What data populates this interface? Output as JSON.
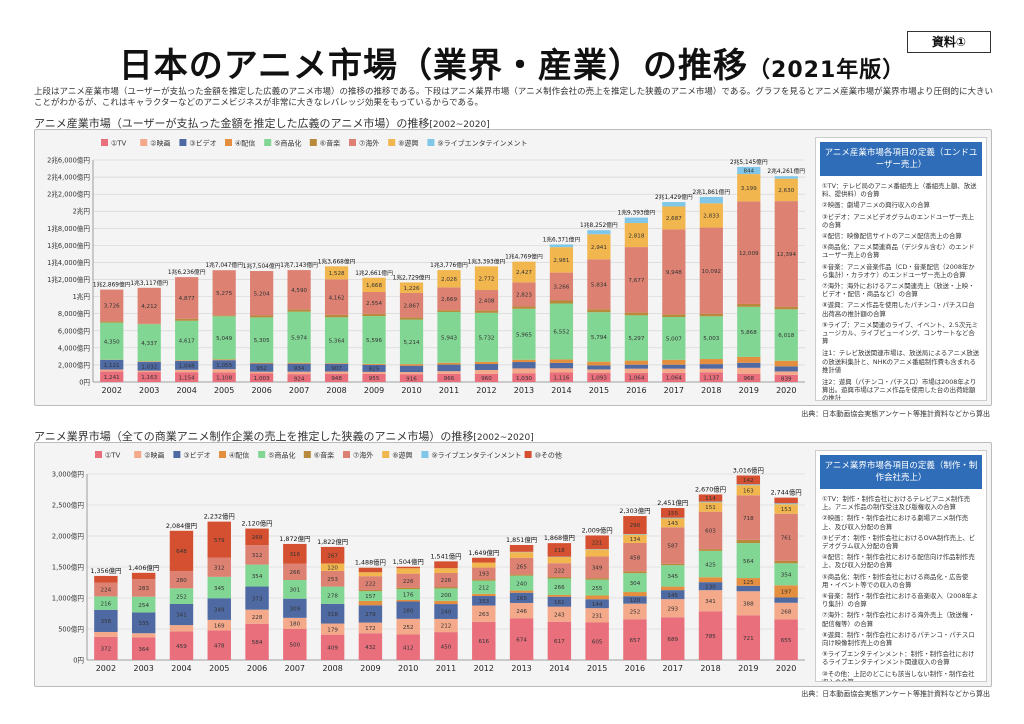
{
  "badge": "資料①",
  "title_main": "日本のアニメ市場（業界・産業）の推移",
  "title_sub": "（2021年版）",
  "intro": "上段はアニメ産業市場（ユーザーが支払った金額を推定した広義のアニメ市場）の推移の推移である。下段はアニメ業界市場（アニメ制作会社の売上を推定した狭義のアニメ市場）である。グラフを見るとアニメ産業市場が業界市場より圧倒的に大きいことがわかるが、これはキャラクターなどのアニメビジネスが非常に大きなレバレッジ効果をもっているからである。",
  "section1": {
    "title": "アニメ産業市場（ユーザーが支払った金額を推定した広義のアニメ市場）の推移",
    "range": "[2002~2020]",
    "source": "出典：日本動画協会実態アンケート等推計資料などから算出"
  },
  "section2": {
    "title": "アニメ業界市場（全ての商業アニメ制作企業の売上を推定した狭義のアニメ市場）の推移",
    "range": "[2002~2020]",
    "source": "出典：日本動画協会実態アンケート等推計資料などから算出"
  },
  "colors": {
    "tv": "#e96f7c",
    "movie": "#f3a98a",
    "video": "#4f6aa3",
    "delivery": "#e48f3f",
    "merch": "#82d694",
    "music": "#b98a3c",
    "overseas": "#dd8273",
    "pachinko": "#f2b64e",
    "live": "#7fc6e8",
    "other": "#d45030"
  },
  "chart_data": [
    {
      "type": "bar",
      "title": "アニメ産業市場の推移",
      "ylim": [
        0,
        26000
      ],
      "yticks": [
        0,
        2000,
        4000,
        6000,
        8000,
        10000,
        12000,
        14000,
        16000,
        18000,
        20000,
        22000,
        24000,
        26000
      ],
      "ytick_labels": [
        "0円",
        "2,000億円",
        "4,000億円",
        "6,000億円",
        "8,000億円",
        "1兆円",
        "1兆2,000億円",
        "1兆4,000億円",
        "1兆6,000億円",
        "1兆8,000億円",
        "2兆円",
        "2兆2,000億円",
        "2兆4,000億円",
        "2兆6,000億円"
      ],
      "categories": [
        "2002",
        "2003",
        "2004",
        "2005",
        "2006",
        "2007",
        "2008",
        "2009",
        "2010",
        "2011",
        "2012",
        "2013",
        "2014",
        "2015",
        "2016",
        "2017",
        "2018",
        "2019",
        "2020"
      ],
      "series": [
        {
          "name": "①TV",
          "key": "tv",
          "values": [
            1241,
            1163,
            1154,
            1108,
            1003,
            924,
            948,
            955,
            916,
            966,
            960,
            1030,
            1116,
            1093,
            1064,
            1064,
            1137,
            968,
            839
          ]
        },
        {
          "name": "②映画",
          "key": "movie",
          "values": [
            218,
            170,
            277,
            394,
            203,
            288,
            283,
            229,
            245,
            301,
            447,
            564,
            488,
            379,
            498,
            498,
            426,
            694,
            401
          ]
        },
        {
          "name": "③ビデオ",
          "key": "video",
          "values": [
            1121,
            1032,
            1048,
            1055,
            952,
            934,
            907,
            825,
            753,
            773,
            699,
            745,
            630,
            473,
            468,
            461,
            532,
            587,
            592
          ]
        },
        {
          "name": "④配信",
          "key": "delivery",
          "values": [
            30,
            66,
            73,
            92,
            105,
            113,
            75,
            110,
            186,
            217,
            262,
            272,
            408,
            437,
            478,
            580,
            595,
            687,
            660
          ]
        },
        {
          "name": "⑤商品化",
          "key": "merch",
          "values": [
            4350,
            4337,
            4617,
            5049,
            5305,
            5974,
            5364,
            5596,
            5214,
            5943,
            5732,
            5965,
            6552,
            5794,
            5297,
            5007,
            5003,
            5868,
            6018
          ]
        },
        {
          "name": "⑥音楽",
          "key": "music",
          "values": [
            138,
            51,
            235,
            120,
            227,
            283,
            283,
            271,
            251,
            215,
            264,
            271,
            352,
            352,
            319,
            316,
            306,
            337,
            279
          ]
        },
        {
          "name": "⑦海外",
          "key": "overseas",
          "values": [
            3726,
            4212,
            4877,
            5275,
            5204,
            4590,
            4162,
            2554,
            2867,
            2669,
            2408,
            2823,
            3266,
            5834,
            7677,
            9948,
            10092,
            12009,
            12394
          ]
        },
        {
          "name": "⑧遊興",
          "key": "pachinko",
          "values": [
            0,
            0,
            0,
            0,
            0,
            0,
            1528,
            1668,
            1226,
            2026,
            2772,
            2427,
            2981,
            2941,
            2818,
            2687,
            2833,
            3199,
            2630
          ]
        },
        {
          "name": "⑨ライブエンタテインメント",
          "key": "live",
          "values": [
            0,
            0,
            0,
            0,
            0,
            0,
            0,
            0,
            0,
            0,
            0,
            0,
            318,
            477,
            632,
            513,
            754,
            844,
            289
          ]
        }
      ],
      "totals": [
        12869,
        13117,
        16236,
        17047,
        17504,
        17143,
        13668,
        12661,
        12729,
        13776,
        13393,
        14769,
        16371,
        18252,
        19393,
        21429,
        21861,
        25145,
        24261
      ],
      "total_labels": [
        "1兆2,869億円",
        "1兆3,117億円",
        "1兆6,236億円",
        "1兆7,047億円",
        "1兆7,504億円",
        "1兆7,143億円",
        "1兆3,668億円",
        "1兆2,661億円",
        "1兆2,729億円",
        "1兆3,776億円",
        "1兆3,393億円",
        "1兆4,769億円",
        "1兆6,371億円",
        "1兆8,252億円",
        "1兆9,393億円",
        "2兆1,429億円",
        "2兆1,861億円",
        "2兆5,145億円",
        "2兆4,261億円"
      ]
    },
    {
      "type": "bar",
      "title": "アニメ業界市場の推移",
      "ylim": [
        0,
        3000
      ],
      "yticks": [
        0,
        500,
        1000,
        1500,
        2000,
        2500,
        3000
      ],
      "ytick_labels": [
        "0円",
        "500億円",
        "1,000億円",
        "1,500億円",
        "2,000億円",
        "2,500億円",
        "3,000億円"
      ],
      "categories": [
        "2002",
        "2003",
        "2004",
        "2005",
        "2006",
        "2007",
        "2008",
        "2009",
        "2010",
        "2011",
        "2012",
        "2013",
        "2014",
        "2015",
        "2016",
        "2017",
        "2018",
        "2019",
        "2020"
      ],
      "series": [
        {
          "name": "①TV",
          "key": "tv",
          "values": [
            372,
            364,
            459,
            478,
            584,
            500,
            409,
            432,
            412,
            450,
            616,
            674,
            617,
            605,
            657,
            689,
            785,
            721,
            655
          ]
        },
        {
          "name": "②映画",
          "key": "movie",
          "values": [
            80,
            68,
            104,
            169,
            228,
            180,
            179,
            172,
            252,
            212,
            263,
            246,
            243,
            231,
            252,
            293,
            341,
            388,
            268
          ]
        },
        {
          "name": "③ビデオ",
          "key": "video",
          "values": [
            358,
            335,
            341,
            349,
            373,
            309,
            318,
            279,
            280,
            240,
            153,
            165,
            161,
            144,
            120,
            145,
            130,
            88,
            85
          ]
        },
        {
          "name": "④配信",
          "key": "delivery",
          "values": [
            0,
            0,
            0,
            0,
            0,
            0,
            0,
            70,
            24,
            53,
            35,
            35,
            28,
            61,
            67,
            57,
            79,
            125,
            197
          ]
        },
        {
          "name": "⑤商品化",
          "key": "merch",
          "values": [
            216,
            254,
            252,
            345,
            354,
            301,
            278,
            157,
            176,
            200,
            212,
            240,
            266,
            255,
            304,
            345,
            425,
            564,
            354
          ]
        },
        {
          "name": "⑥音楽",
          "key": "music",
          "values": [
            0,
            0,
            0,
            0,
            0,
            0,
            0,
            20,
            23,
            22,
            19,
            21,
            24,
            25,
            30,
            24,
            29,
            52,
            39
          ]
        },
        {
          "name": "⑦海外",
          "key": "overseas",
          "values": [
            224,
            283,
            280,
            312,
            312,
            266,
            253,
            222,
            226,
            226,
            193,
            265,
            222,
            349,
            458,
            587,
            603,
            718,
            761
          ]
        },
        {
          "name": "⑧遊興",
          "key": "pachinko",
          "values": [
            0,
            0,
            0,
            0,
            0,
            0,
            120,
            63,
            87,
            78,
            80,
            93,
            100,
            110,
            134,
            143,
            151,
            163,
            153
          ]
        },
        {
          "name": "⑨ライブエンタテインメント",
          "key": "live",
          "values": [
            0,
            0,
            0,
            0,
            0,
            0,
            0,
            0,
            0,
            0,
            0,
            6,
            6,
            8,
            10,
            13,
            13,
            15,
            16
          ]
        },
        {
          "name": "⑩その他",
          "key": "other",
          "values": [
            106,
            102,
            648,
            579,
            269,
            316,
            267,
            73,
            24,
            110,
            78,
            110,
            218,
            221,
            290,
            155,
            114,
            142,
            91
          ]
        }
      ],
      "totals": [
        1356,
        1406,
        2084,
        2232,
        2120,
        1872,
        1822,
        1488,
        1504,
        1541,
        1649,
        1851,
        1868,
        2009,
        2303,
        2451,
        2670,
        3016,
        2744
      ],
      "total_labels": [
        "1,356億円",
        "1,406億円",
        "2,084億円",
        "2,232億円",
        "2,120億円",
        "1,872億円",
        "1,822億円",
        "1,488億円",
        "1,504億円",
        "1,541億円",
        "1,649億円",
        "1,851億円",
        "1,868億円",
        "2,009億円",
        "2,303億円",
        "2,451億円",
        "2,670億円",
        "3,016億円",
        "2,744億円"
      ]
    }
  ],
  "def1": {
    "head": "アニメ産業市場各項目の定義（エンドユーザー売上）",
    "items": [
      "①TV：テレビ局のアニメ番組売上（番組売上額、放送料、提供料）の合算",
      "②映画：劇場アニメの興行収入の合算",
      "③ビデオ：アニメビデオグラムのエンドユーザー売上の合算",
      "④配信：映像配信サイトのアニメ配信売上の合算",
      "⑤商品化：アニメ関連商品（デジタル含む）のエンドユーザー売上の合算",
      "⑥音楽：アニメ音楽作品（CD・音楽配信（2008年から集計）・カラオケ）のエンドユーザー売上の合算",
      "⑦海外：海外におけるアニメ関連売上（放送・上映・ビデオ・配信・商品など）の合算",
      "⑧遊興：アニメ作品を使用したパチンコ・パチスロ台出荷高の推計額の合算",
      "⑨ライブ：アニメ関連のライブ、イベント、2.5次元ミュージカル、ライブビューイング、コンサートなど合算"
    ],
    "notes": [
      "注1：テレビ放送関連市場は、放送局によるアニメ放送の放送料集計と、NHKのアニメ番組制作費も含まれる推計値",
      "注2：遊興（パチンコ・パチスロ）市場は2008年より算出。遊興市場はアニメ作品を使用した台の出荷総額の推計",
      "注3：配信市場は2008年から集計",
      "注4：ライブエンタテインメント市場は2013年より算出。アニソン・声優ライブ、イベント、2.5次元ミュージカル、関連施設・展示会、カフェのエンドユーザー売上の合算",
      "注5：07-13年資産を再推計し補足値を修正"
    ]
  },
  "def2": {
    "head": "アニメ業界市場各項目の定義（制作・制作会社売上）",
    "items": [
      "①TV：制作・制作会社におけるテレビアニメ制作売上。アニメ作品の制作受注及び版権収入の合算",
      "②映画：制作・制作会社における劇場アニメ制作売上、及び収入分配の合算",
      "③ビデオ：制作・制作会社におけるOVA制作売上、ビデオグラム収入分配の合算",
      "④配信：制作・制作会社における配信向け作品制作売上、及び収入分配の合算",
      "⑤商品化：制作・制作会社における商品化・広告使用・イベント等での収入の合算",
      "⑥音楽：制作・制作会社における音楽収入（2008年より集計）の合算",
      "⑦海外：制作・制作会社における海外売上（放送権・配信権等）の合算",
      "⑧遊興：制作・制作会社におけるパチンコ・パチスロ向け映像制作売上の合算",
      "⑨ライブエンタテインメント：制作・制作会社におけるライブエンタテインメント関連収入の合算",
      "⑩その他：上記のどこにも該当しない制作・制作会社収入の合算"
    ],
    "notes": [
      "注1：遊興（パチンコ・パチスロ）の業界市場の数値は2008年から算出。2007年以前の遊興売上については、その他の中に含まれる。"
    ]
  }
}
